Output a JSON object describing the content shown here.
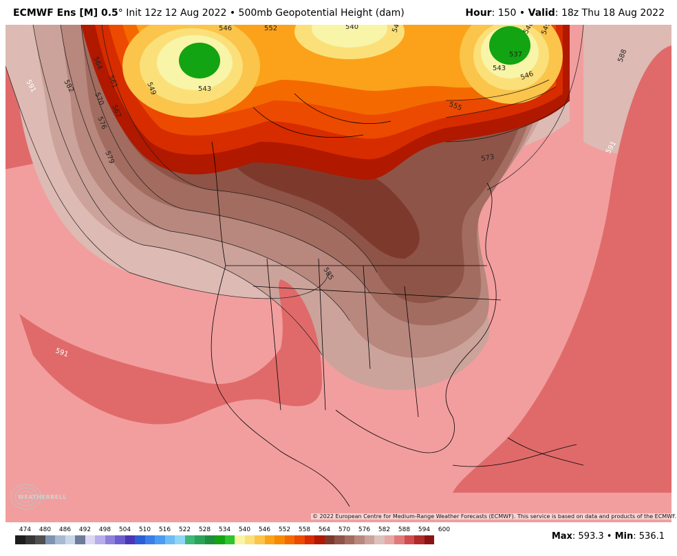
{
  "header": {
    "model": "ECMWF Ens [M] 0.5",
    "degree": "°",
    "init": "Init 12z 12 Aug 2022",
    "bullet": "•",
    "field": "500mb Geopotential Height (dam)",
    "hour_label": "Hour",
    "hour_value": ": 150",
    "valid_label": "Valid",
    "valid_value": ": 18z Thu 18 Aug 2022"
  },
  "map": {
    "contour_labels": [
      {
        "text": "591",
        "near": "NE Pacific west"
      },
      {
        "text": "582",
        "near": "NE Pacific"
      },
      {
        "text": "570",
        "near": "Gulf of Alaska"
      },
      {
        "text": "576",
        "near": "Gulf of Alaska"
      },
      {
        "text": "579",
        "near": "Gulf of Alaska"
      },
      {
        "text": "564",
        "near": "Alaska coast"
      },
      {
        "text": "561",
        "near": "Alaska coast"
      },
      {
        "text": "567",
        "near": "Alaska coast"
      },
      {
        "text": "549",
        "near": "Alaska"
      },
      {
        "text": "543",
        "near": "Alaska low"
      },
      {
        "text": "546",
        "near": "Arctic Ocean"
      },
      {
        "text": "552",
        "near": "Arctic Ocean"
      },
      {
        "text": "540",
        "near": "Arctic Ocean"
      },
      {
        "text": "549",
        "near": "Canadian Archipelago"
      },
      {
        "text": "537",
        "near": "Greenland low"
      },
      {
        "text": "540",
        "near": "Greenland"
      },
      {
        "text": "543",
        "near": "Greenland"
      },
      {
        "text": "546",
        "near": "Greenland"
      },
      {
        "text": "549",
        "near": "Greenland"
      },
      {
        "text": "555",
        "near": "Baffin Bay"
      },
      {
        "text": "573",
        "near": "Labrador"
      },
      {
        "text": "588",
        "near": "N Atlantic"
      },
      {
        "text": "591",
        "near": "N Atlantic"
      },
      {
        "text": "585",
        "near": "Northern Plains"
      },
      {
        "text": "591",
        "near": "Eastern Pacific south"
      }
    ],
    "copyright": "© 2022 European Centre for Medium-Range Weather Forecasts (ECMWF). This service is based on data and products of the ECMWF.",
    "logo_text": "WEATHERBELL"
  },
  "colorbar": {
    "labels": [
      "474",
      "480",
      "486",
      "492",
      "498",
      "504",
      "510",
      "516",
      "522",
      "528",
      "534",
      "540",
      "546",
      "552",
      "558",
      "564",
      "570",
      "576",
      "582",
      "588",
      "594",
      "600"
    ],
    "colors": [
      "#1c1c1c",
      "#363636",
      "#505050",
      "#7e94b0",
      "#a8bad2",
      "#c8d6e8",
      "#6e7c99",
      "#dcd7f3",
      "#b8adea",
      "#8f80dc",
      "#6b5dce",
      "#4b36b8",
      "#2c5fd6",
      "#3a7fe8",
      "#4a9cf0",
      "#6fbcf5",
      "#8fd5f7",
      "#3cb878",
      "#2aa35a",
      "#1f8f3d",
      "#12a412",
      "#2ec42e",
      "#f8f4a8",
      "#fbe07a",
      "#fbc44a",
      "#fba21a",
      "#f88a00",
      "#f46a00",
      "#ec4a00",
      "#d62c00",
      "#b01800",
      "#7d3a2c",
      "#8e5447",
      "#a26c60",
      "#b8877d",
      "#cba39b",
      "#dcc2bc",
      "#e8a6a4",
      "#e07a7a",
      "#cf4d4d",
      "#b02a2a",
      "#8a1414"
    ],
    "max_label": "Max",
    "max_value": ": 593.3",
    "sep": "•",
    "min_label": "Min",
    "min_value": ": 536.1"
  }
}
